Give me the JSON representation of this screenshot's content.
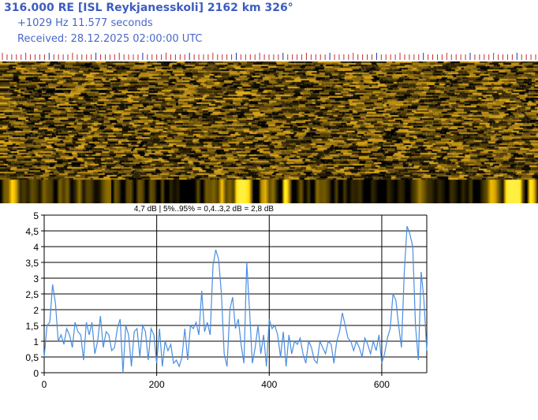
{
  "header": {
    "title": "316.000 RE [ISL Reykjanesskoli] 2162 km 326°",
    "offset_duration": "+1029 Hz 11.577 seconds",
    "received": "Received: 28.12.2025 02:00:00 UTC"
  },
  "colors": {
    "title": "#3d5cc0",
    "spectrogram": "#e0b010",
    "series": "#4a8ee0",
    "tick_minor": "#c03030",
    "tick_major": "#2030a0"
  },
  "chart_data": {
    "type": "line",
    "title": "4,7 dB | 5%..95% = 0,4..3,2 dB = 2,8 dB",
    "xlim": [
      0,
      680
    ],
    "ylim": [
      0,
      5
    ],
    "grid": true,
    "x_ticks": [
      "0",
      "200",
      "400",
      "600"
    ],
    "y_ticks": [
      "0",
      "0,5",
      "1",
      "1,5",
      "2",
      "2,5",
      "3",
      "3,5",
      "4",
      "4,5",
      "5"
    ],
    "x_step": 5,
    "values": [
      0.5,
      1.5,
      1.6,
      2.8,
      2.2,
      1.0,
      1.2,
      0.9,
      1.4,
      1.2,
      0.8,
      1.6,
      1.3,
      1.2,
      0.4,
      1.6,
      1.2,
      1.6,
      0.6,
      1.0,
      1.8,
      0.8,
      1.3,
      1.2,
      0.7,
      0.8,
      1.4,
      1.7,
      0.0,
      1.5,
      1.2,
      0.2,
      1.3,
      1.4,
      0.5,
      1.5,
      1.3,
      0.4,
      1.4,
      1.2,
      0.3,
      1.4,
      0.2,
      1.0,
      0.7,
      0.9,
      0.3,
      0.4,
      0.2,
      0.5,
      1.4,
      0.4,
      1.5,
      1.4,
      1.6,
      1.2,
      2.6,
      1.3,
      1.6,
      1.2,
      3.4,
      3.9,
      3.6,
      2.5,
      0.6,
      0.2,
      2.0,
      2.4,
      1.4,
      1.7,
      0.9,
      0.3,
      3.5,
      2.0,
      0.3,
      0.8,
      1.5,
      0.6,
      1.2,
      0.2,
      1.7,
      1.4,
      1.5,
      1.2,
      0.5,
      1.3,
      0.2,
      1.2,
      0.6,
      1.0,
      0.9,
      1.1,
      0.6,
      0.3,
      1.0,
      0.8,
      0.4,
      0.3,
      1.0,
      0.8,
      0.6,
      1.0,
      0.9,
      0.3,
      1.0,
      1.3,
      1.9,
      1.5,
      1.1,
      1.0,
      0.7,
      1.0,
      0.8,
      0.5,
      1.1,
      0.9,
      0.6,
      1.0,
      0.7,
      1.2,
      0.3,
      0.6,
      1.1,
      1.4,
      2.5,
      2.3,
      1.5,
      0.8,
      3.2,
      4.65,
      4.4,
      4.0,
      1.5,
      0.4,
      3.2,
      2.3,
      0.7
    ]
  }
}
